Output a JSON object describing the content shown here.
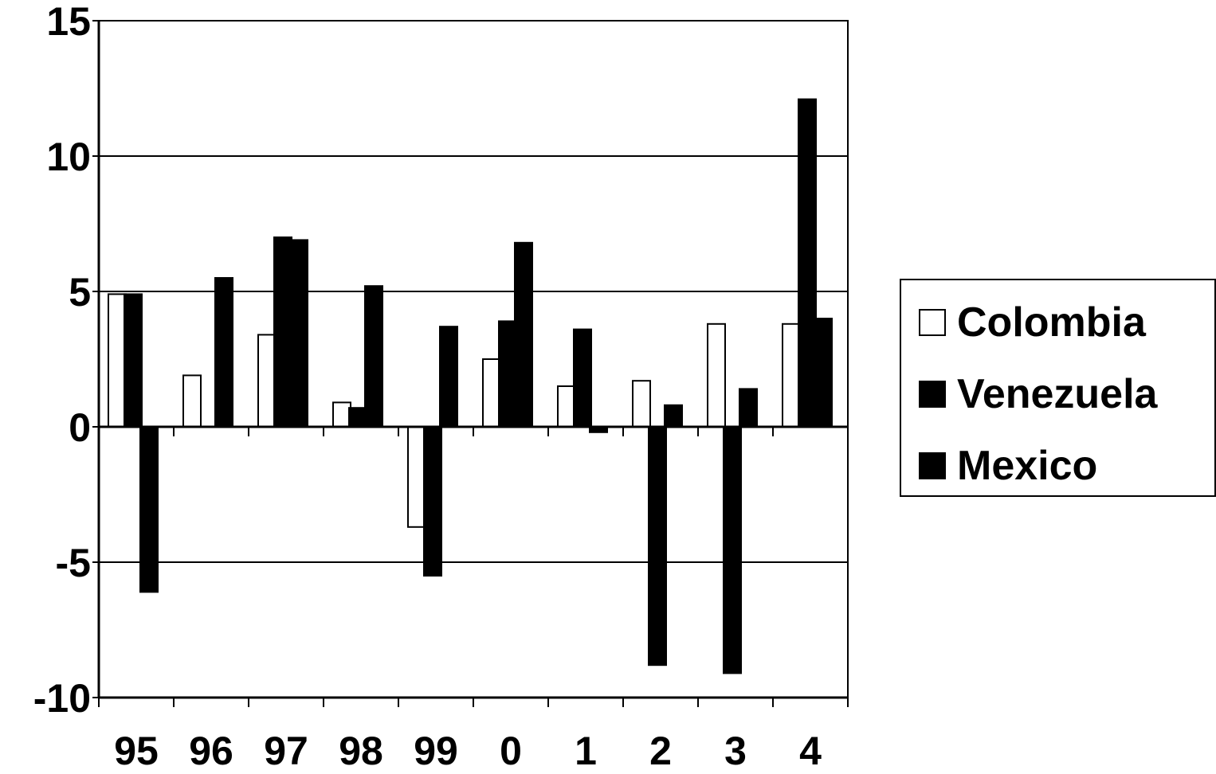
{
  "chart_data": {
    "type": "bar",
    "categories": [
      "95",
      "96",
      "97",
      "98",
      "99",
      "0",
      "1",
      "2",
      "3",
      "4"
    ],
    "series": [
      {
        "name": "Colombia",
        "color": "#ffffff",
        "values": [
          4.9,
          1.9,
          3.4,
          0.9,
          -3.7,
          2.5,
          1.5,
          1.7,
          3.8,
          3.8
        ]
      },
      {
        "name": "Venezuela",
        "color": "#000000",
        "values": [
          4.9,
          0,
          7.0,
          0.7,
          -5.5,
          3.9,
          3.6,
          -8.8,
          -9.1,
          12.1
        ]
      },
      {
        "name": "Mexico",
        "color": "#000000",
        "values": [
          -6.1,
          5.5,
          6.9,
          5.2,
          3.7,
          6.8,
          -0.2,
          0.8,
          1.4,
          4.0
        ]
      }
    ],
    "yticks": [
      "15",
      "10",
      "5",
      "0",
      "-5",
      "-10"
    ],
    "ylim": [
      -10,
      15
    ],
    "grid": true,
    "legend_position": "right",
    "title": "",
    "xlabel": "",
    "ylabel": ""
  }
}
